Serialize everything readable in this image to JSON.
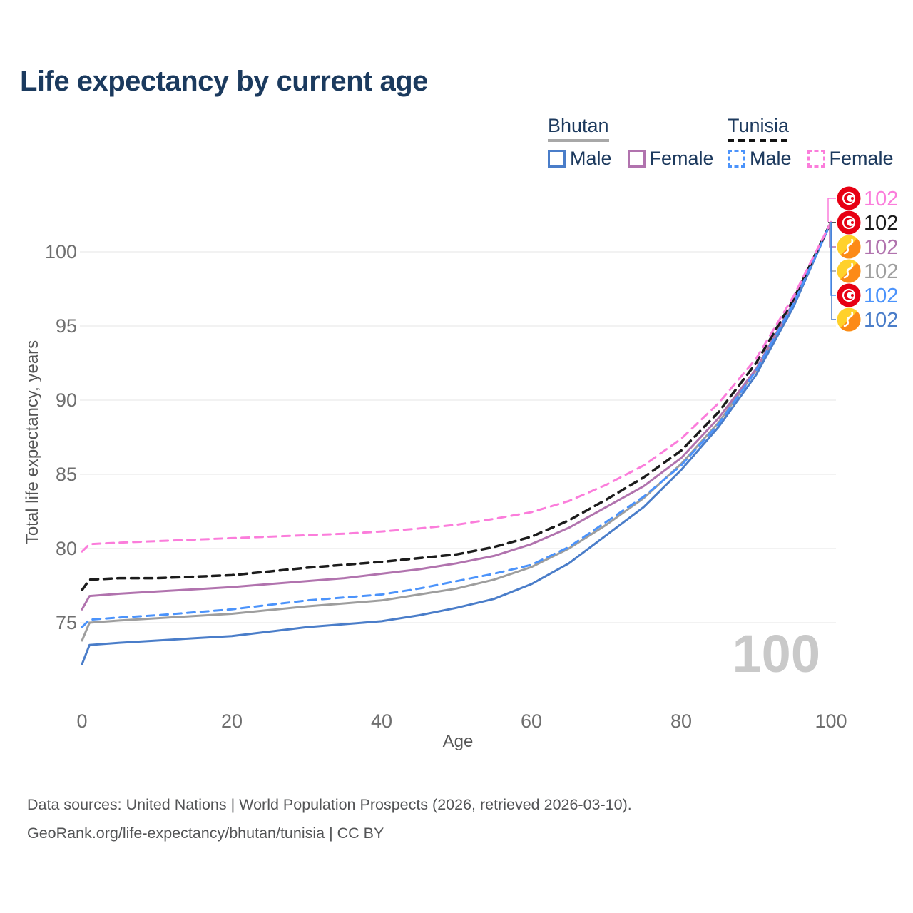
{
  "title": "Life expectancy by current age",
  "hover_age": "100",
  "axes": {
    "y_title": "Total life expectancy, years",
    "x_title": "Age"
  },
  "legend": {
    "groups": [
      {
        "title": "Bhutan",
        "items": [
          {
            "label": "Male"
          },
          {
            "label": "Female"
          }
        ]
      },
      {
        "title": "Tunisia",
        "items": [
          {
            "label": "Male"
          },
          {
            "label": "Female"
          }
        ]
      }
    ]
  },
  "source": {
    "line1": "Data sources: United Nations | World Population Prospects (2026, retrieved 2026-03-10).",
    "line2": "GeoRank.org/life-expectancy/bhutan/tunisia | CC BY"
  },
  "colors": {
    "title_text": "#1b3a5e",
    "legend_text": "#1d3a5e",
    "axis_tick_text": "#6f6f6f",
    "axis_title_text": "#565656",
    "grid": "#ededed",
    "watermark": "#c9c9c9",
    "source_text": "#535456",
    "tunisia_flag_red": "#E70013",
    "bhutan_flag_yellow": "#FFD12B",
    "bhutan_flag_orange": "#FC8A17",
    "series": {
      "bhutan_total": "#9e9e9e",
      "bhutan_male": "#4a7dc9",
      "bhutan_female": "#b173ae",
      "tunisia_total": "#1c1c1c",
      "tunisia_male": "#4b93fb",
      "tunisia_female": "#fb7ddb"
    }
  },
  "chart_data": {
    "type": "line",
    "title": "Life expectancy by current age",
    "xlabel": "Age",
    "ylabel": "Total life expectancy, years",
    "x_ticks": [
      0,
      20,
      40,
      60,
      80,
      100
    ],
    "y_ticks": [
      75,
      80,
      85,
      90,
      95,
      100
    ],
    "xlim": [
      0,
      100
    ],
    "ylim": [
      71.5,
      103.5
    ],
    "grid": "horizontal-only",
    "legend_position": "top-right",
    "hovered_age": 100,
    "hovered_value_all_series": 102,
    "ages": [
      0,
      1,
      5,
      10,
      15,
      20,
      25,
      30,
      35,
      40,
      45,
      50,
      55,
      60,
      65,
      70,
      75,
      80,
      85,
      90,
      95,
      100
    ],
    "series": [
      {
        "name": "Bhutan Total",
        "country": "Bhutan",
        "sex": "total",
        "style": "solid",
        "color_key": "bhutan_total",
        "values": [
          73.8,
          75.0,
          75.15,
          75.3,
          75.45,
          75.6,
          75.85,
          76.1,
          76.3,
          76.5,
          76.9,
          77.3,
          77.9,
          78.75,
          80.0,
          81.6,
          83.4,
          85.7,
          88.5,
          92.0,
          96.5,
          102
        ]
      },
      {
        "name": "Bhutan Female",
        "country": "Bhutan",
        "sex": "female",
        "style": "solid",
        "color_key": "bhutan_female",
        "values": [
          75.9,
          76.8,
          76.95,
          77.1,
          77.25,
          77.4,
          77.6,
          77.8,
          78.0,
          78.3,
          78.6,
          79.0,
          79.5,
          80.3,
          81.4,
          82.8,
          84.2,
          86.1,
          88.8,
          92.1,
          96.6,
          102
        ]
      },
      {
        "name": "Bhutan Male",
        "country": "Bhutan",
        "sex": "male",
        "style": "solid",
        "color_key": "bhutan_male",
        "values": [
          72.2,
          73.5,
          73.65,
          73.8,
          73.95,
          74.1,
          74.4,
          74.7,
          74.9,
          75.1,
          75.5,
          76.0,
          76.6,
          77.6,
          79.0,
          80.9,
          82.8,
          85.3,
          88.2,
          91.7,
          96.3,
          102
        ]
      },
      {
        "name": "Tunisia Total",
        "country": "Tunisia",
        "sex": "total",
        "style": "dashed",
        "color_key": "tunisia_total",
        "values": [
          77.2,
          77.9,
          78.0,
          78.0,
          78.1,
          78.2,
          78.45,
          78.7,
          78.9,
          79.1,
          79.35,
          79.6,
          80.1,
          80.8,
          81.9,
          83.3,
          84.8,
          86.6,
          89.2,
          92.5,
          96.8,
          102
        ]
      },
      {
        "name": "Tunisia Male",
        "country": "Tunisia",
        "sex": "male",
        "style": "dashed",
        "color_key": "tunisia_male",
        "values": [
          74.7,
          75.2,
          75.35,
          75.5,
          75.7,
          75.9,
          76.2,
          76.5,
          76.7,
          76.9,
          77.3,
          77.8,
          78.3,
          78.9,
          80.1,
          81.8,
          83.5,
          85.6,
          88.4,
          92.0,
          96.5,
          102
        ]
      },
      {
        "name": "Tunisia Female",
        "country": "Tunisia",
        "sex": "female",
        "style": "dashed",
        "color_key": "tunisia_female",
        "values": [
          79.8,
          80.3,
          80.4,
          80.5,
          80.6,
          80.7,
          80.8,
          80.9,
          81.0,
          81.15,
          81.35,
          81.6,
          82.0,
          82.45,
          83.2,
          84.3,
          85.6,
          87.4,
          89.8,
          92.8,
          97.0,
          102
        ]
      }
    ],
    "end_labels": [
      {
        "flag": "tunisia",
        "value": "102",
        "color_key": "tunisia_female"
      },
      {
        "flag": "tunisia",
        "value": "102",
        "color_key": "tunisia_total"
      },
      {
        "flag": "bhutan",
        "value": "102",
        "color_key": "bhutan_female"
      },
      {
        "flag": "bhutan",
        "value": "102",
        "color_key": "bhutan_total"
      },
      {
        "flag": "tunisia",
        "value": "102",
        "color_key": "tunisia_male"
      },
      {
        "flag": "bhutan",
        "value": "102",
        "color_key": "bhutan_male"
      }
    ]
  }
}
